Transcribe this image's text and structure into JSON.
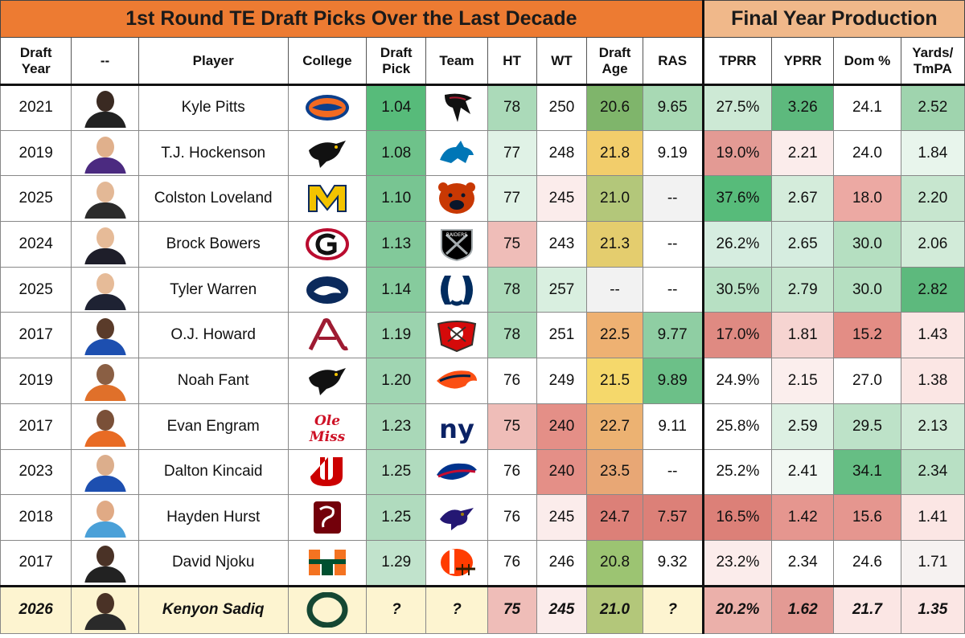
{
  "title_left": "1st Round TE Draft Picks Over the Last Decade",
  "title_right": "Final Year Production",
  "headers": {
    "draft_year": "Draft\nYear",
    "photo": "--",
    "player": "Player",
    "college": "College",
    "draft_pick": "Draft\nPick",
    "team": "Team",
    "ht": "HT",
    "wt": "WT",
    "draft_age": "Draft\nAge",
    "ras": "RAS",
    "tprr": "TPRR",
    "yprr": "YPRR",
    "dom": "Dom %",
    "yards_tmpa": "Yards/\nTmPA"
  },
  "rows": [
    {
      "year": "2021",
      "player": "Kyle Pitts",
      "college_icon": "florida-gators-logo",
      "pick": "1.04",
      "team_icon": "atlanta-falcons-logo",
      "ht": "78",
      "wt": "250",
      "age": "20.6",
      "ras": "9.65",
      "tprr": "27.5%",
      "yprr": "3.26",
      "dom": "24.1",
      "ytmpa": "2.52",
      "colors": {
        "pick": "#57bb7a",
        "ht": "#abdab9",
        "wt": "#ffffff",
        "age": "#7fb56b",
        "ras": "#a8d9b4",
        "tprr": "#cde9d5",
        "yprr": "#5db97d",
        "dom": "#ffffff",
        "ytmpa": "#9fd4ae"
      },
      "photo": {
        "skin": "#3a2a22",
        "jersey": "#222222"
      }
    },
    {
      "year": "2019",
      "player": "T.J. Hockenson",
      "college_icon": "iowa-hawkeyes-logo",
      "pick": "1.08",
      "team_icon": "detroit-lions-logo",
      "ht": "77",
      "wt": "248",
      "age": "21.8",
      "ras": "9.19",
      "tprr": "19.0%",
      "yprr": "2.21",
      "dom": "24.0",
      "ytmpa": "1.84",
      "colors": {
        "pick": "#6ec28a",
        "ht": "#e0f2e6",
        "wt": "#ffffff",
        "age": "#f2cd6b",
        "ras": "#ffffff",
        "tprr": "#e39a94",
        "yprr": "#fbeceb",
        "dom": "#ffffff",
        "ytmpa": "#e8f5ec"
      },
      "photo": {
        "skin": "#e0b08c",
        "jersey": "#4b2a80"
      }
    },
    {
      "year": "2025",
      "player": "Colston Loveland",
      "college_icon": "michigan-wolverines-logo",
      "pick": "1.10",
      "team_icon": "chicago-bears-logo",
      "ht": "77",
      "wt": "245",
      "age": "21.0",
      "ras": "--",
      "tprr": "37.6%",
      "yprr": "2.67",
      "dom": "18.0",
      "ytmpa": "2.20",
      "colors": {
        "pick": "#78c592",
        "ht": "#e0f2e6",
        "wt": "#fbeceb",
        "age": "#b3c77a",
        "ras": "#f2f2f2",
        "tprr": "#57bb7a",
        "yprr": "#d4ecdb",
        "dom": "#eca9a3",
        "ytmpa": "#c7e6cf"
      },
      "photo": {
        "skin": "#e3b896",
        "jersey": "#2b2b2b"
      }
    },
    {
      "year": "2024",
      "player": "Brock Bowers",
      "college_icon": "georgia-bulldogs-logo",
      "pick": "1.13",
      "team_icon": "las-vegas-raiders-logo",
      "ht": "75",
      "wt": "243",
      "age": "21.3",
      "ras": "--",
      "tprr": "26.2%",
      "yprr": "2.65",
      "dom": "30.0",
      "ytmpa": "2.06",
      "colors": {
        "pick": "#82c99a",
        "ht": "#efbdb8",
        "wt": "#ffffff",
        "age": "#e4cd6e",
        "ras": "#ffffff",
        "tprr": "#d6ede0",
        "yprr": "#d6ede0",
        "dom": "#b5dfc1",
        "ytmpa": "#d2ebd9"
      },
      "photo": {
        "skin": "#e6bb98",
        "jersey": "#1e1e2a"
      }
    },
    {
      "year": "2025",
      "player": "Tyler Warren",
      "college_icon": "penn-state-logo",
      "pick": "1.14",
      "team_icon": "indianapolis-colts-logo",
      "ht": "78",
      "wt": "257",
      "age": "--",
      "ras": "--",
      "tprr": "30.5%",
      "yprr": "2.79",
      "dom": "30.0",
      "ytmpa": "2.82",
      "colors": {
        "pick": "#86cb9d",
        "ht": "#abdab9",
        "wt": "#d9efe0",
        "age": "#f2f2f2",
        "ras": "#ffffff",
        "tprr": "#b7e0c3",
        "yprr": "#c6e6cf",
        "dom": "#b5dfc1",
        "ytmpa": "#5db97d"
      },
      "photo": {
        "skin": "#e6bb98",
        "jersey": "#1e2233"
      }
    },
    {
      "year": "2017",
      "player": "O.J. Howard",
      "college_icon": "alabama-crimson-tide-logo",
      "pick": "1.19",
      "team_icon": "tampa-bay-buccaneers-logo",
      "ht": "78",
      "wt": "251",
      "age": "22.5",
      "ras": "9.77",
      "tprr": "17.0%",
      "yprr": "1.81",
      "dom": "15.2",
      "ytmpa": "1.43",
      "colors": {
        "pick": "#9bd3ae",
        "ht": "#abdab9",
        "wt": "#ffffff",
        "age": "#eeb172",
        "ras": "#8fcea3",
        "tprr": "#df8a82",
        "yprr": "#f6d4d1",
        "dom": "#e38d85",
        "ytmpa": "#fbe6e4"
      },
      "photo": {
        "skin": "#5a3b2a",
        "jersey": "#1d4fb0"
      }
    },
    {
      "year": "2019",
      "player": "Noah Fant",
      "college_icon": "iowa-hawkeyes-logo",
      "pick": "1.20",
      "team_icon": "denver-broncos-logo",
      "ht": "76",
      "wt": "249",
      "age": "21.5",
      "ras": "9.89",
      "tprr": "24.9%",
      "yprr": "2.15",
      "dom": "27.0",
      "ytmpa": "1.38",
      "colors": {
        "pick": "#a0d5b2",
        "ht": "#ffffff",
        "wt": "#ffffff",
        "age": "#f5d86b",
        "ras": "#6cc088",
        "tprr": "#ffffff",
        "yprr": "#fbeeed",
        "dom": "#ffffff",
        "ytmpa": "#fbe6e4"
      },
      "photo": {
        "skin": "#8a5f44",
        "jersey": "#e0702a"
      }
    },
    {
      "year": "2017",
      "player": "Evan Engram",
      "college_icon": "ole-miss-rebels-logo",
      "pick": "1.23",
      "team_icon": "new-york-giants-logo",
      "ht": "75",
      "wt": "240",
      "age": "22.7",
      "ras": "9.11",
      "tprr": "25.8%",
      "yprr": "2.59",
      "dom": "29.5",
      "ytmpa": "2.13",
      "colors": {
        "pick": "#a9d8b8",
        "ht": "#efbdb8",
        "wt": "#e48f87",
        "age": "#ecb272",
        "ras": "#ffffff",
        "tprr": "#ffffff",
        "yprr": "#ddf0e3",
        "dom": "#bde2c8",
        "ytmpa": "#d0ead7"
      },
      "photo": {
        "skin": "#7a5038",
        "jersey": "#e86b24"
      }
    },
    {
      "year": "2023",
      "player": "Dalton Kincaid",
      "college_icon": "utah-utes-logo",
      "pick": "1.25",
      "team_icon": "buffalo-bills-logo",
      "ht": "76",
      "wt": "240",
      "age": "23.5",
      "ras": "--",
      "tprr": "25.2%",
      "yprr": "2.41",
      "dom": "34.1",
      "ytmpa": "2.34",
      "colors": {
        "pick": "#b0dbbe",
        "ht": "#ffffff",
        "wt": "#e48f87",
        "age": "#e8a775",
        "ras": "#ffffff",
        "tprr": "#ffffff",
        "yprr": "#f2f8f3",
        "dom": "#66be84",
        "ytmpa": "#b8e0c4"
      },
      "photo": {
        "skin": "#dcae8c",
        "jersey": "#1d4fb0"
      }
    },
    {
      "year": "2018",
      "player": "Hayden Hurst",
      "college_icon": "south-carolina-gamecocks-logo",
      "pick": "1.25",
      "team_icon": "baltimore-ravens-logo",
      "ht": "76",
      "wt": "245",
      "age": "24.7",
      "ras": "7.57",
      "tprr": "16.5%",
      "yprr": "1.42",
      "dom": "15.6",
      "ytmpa": "1.41",
      "colors": {
        "pick": "#b0dbbe",
        "ht": "#ffffff",
        "wt": "#fbeceb",
        "age": "#dc8078",
        "ras": "#dc8078",
        "tprr": "#dc8078",
        "yprr": "#e5968f",
        "dom": "#e5968f",
        "ytmpa": "#fbe6e4"
      },
      "photo": {
        "skin": "#e0aa85",
        "jersey": "#4aa0d8"
      }
    },
    {
      "year": "2017",
      "player": "David Njoku",
      "college_icon": "miami-hurricanes-logo",
      "pick": "1.29",
      "team_icon": "cleveland-browns-logo",
      "ht": "76",
      "wt": "246",
      "age": "20.8",
      "ras": "9.32",
      "tprr": "23.2%",
      "yprr": "2.34",
      "dom": "24.6",
      "ytmpa": "1.71",
      "colors": {
        "pick": "#c1e3cc",
        "ht": "#ffffff",
        "wt": "#ffffff",
        "age": "#9cc472",
        "ras": "#ffffff",
        "tprr": "#fbeceb",
        "yprr": "#ffffff",
        "dom": "#ffffff",
        "ytmpa": "#f6f2f1"
      },
      "photo": {
        "skin": "#4a3226",
        "jersey": "#222222"
      }
    }
  ],
  "last_row": {
    "year": "2026",
    "player": "Kenyon Sadiq",
    "college_icon": "oregon-ducks-logo",
    "pick": "?",
    "team": "?",
    "ht": "75",
    "wt": "245",
    "age": "21.0",
    "ras": "?",
    "tprr": "20.2%",
    "yprr": "1.62",
    "dom": "21.7",
    "ytmpa": "1.35",
    "colors": {
      "ht": "#efbdb8",
      "wt": "#fbeceb",
      "age": "#b3c77a",
      "tprr": "#ebb0aa",
      "yprr": "#e39a94",
      "dom": "#fbe6e4",
      "ytmpa": "#fbe6e4"
    },
    "photo": {
      "skin": "#4a3226",
      "jersey": "#2a2a2a"
    }
  }
}
